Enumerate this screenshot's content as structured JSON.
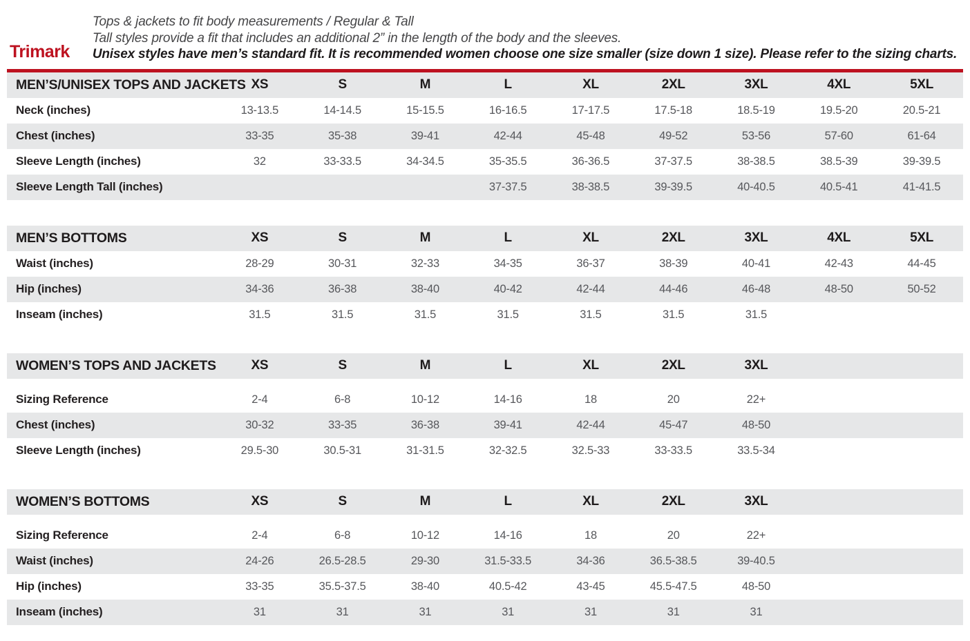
{
  "brand": "Trimark",
  "intro": {
    "line1": "Tops & jackets to fit body measurements / Regular & Tall",
    "line2": "Tall styles provide a fit that includes an additional 2” in the length of the body and the sleeves.",
    "line3": "Unisex styles have men’s standard fit. It is recommended women choose one size smaller (size down 1 size).  Please refer to the sizing charts."
  },
  "colors": {
    "accent_red": "#bd1220",
    "band_gray": "#e6e7e8",
    "value_text": "#56575b",
    "label_text": "#231f20"
  },
  "tables": [
    {
      "title": "MEN’S/UNISEX TOPS AND JACKETS",
      "columns": [
        "XS",
        "S",
        "M",
        "L",
        "XL",
        "2XL",
        "3XL",
        "4XL",
        "5XL"
      ],
      "rows": [
        {
          "label": "Neck (inches)",
          "values": [
            "13-13.5",
            "14-14.5",
            "15-15.5",
            "16-16.5",
            "17-17.5",
            "17.5-18",
            "18.5-19",
            "19.5-20",
            "20.5-21"
          ]
        },
        {
          "label": "Chest (inches)",
          "values": [
            "33-35",
            "35-38",
            "39-41",
            "42-44",
            "45-48",
            "49-52",
            "53-56",
            "57-60",
            "61-64"
          ]
        },
        {
          "label": "Sleeve Length (inches)",
          "values": [
            "32",
            "33-33.5",
            "34-34.5",
            "35-35.5",
            "36-36.5",
            "37-37.5",
            "38-38.5",
            "38.5-39",
            "39-39.5"
          ]
        },
        {
          "label": "Sleeve Length Tall (inches)",
          "values": [
            "",
            "",
            "",
            "37-37.5",
            "38-38.5",
            "39-39.5",
            "40-40.5",
            "40.5-41",
            "41-41.5"
          ]
        }
      ]
    },
    {
      "title": "MEN’S BOTTOMS",
      "columns": [
        "XS",
        "S",
        "M",
        "L",
        "XL",
        "2XL",
        "3XL",
        "4XL",
        "5XL"
      ],
      "rows": [
        {
          "label": "Waist (inches)",
          "values": [
            "28-29",
            "30-31",
            "32-33",
            "34-35",
            "36-37",
            "38-39",
            "40-41",
            "42-43",
            "44-45"
          ]
        },
        {
          "label": "Hip (inches)",
          "values": [
            "34-36",
            "36-38",
            "38-40",
            "40-42",
            "42-44",
            "44-46",
            "46-48",
            "48-50",
            "50-52"
          ]
        },
        {
          "label": "Inseam (inches)",
          "values": [
            "31.5",
            "31.5",
            "31.5",
            "31.5",
            "31.5",
            "31.5",
            "31.5",
            "",
            ""
          ]
        }
      ]
    },
    {
      "title": "WOMEN’S TOPS AND JACKETS",
      "columns": [
        "XS",
        "S",
        "M",
        "L",
        "XL",
        "2XL",
        "3XL"
      ],
      "rows": [
        {
          "label": "Sizing Reference",
          "values": [
            "2-4",
            "6-8",
            "10-12",
            "14-16",
            "18",
            "20",
            "22+"
          ]
        },
        {
          "label": "Chest (inches)",
          "values": [
            "30-32",
            "33-35",
            "36-38",
            "39-41",
            "42-44",
            "45-47",
            "48-50"
          ]
        },
        {
          "label": "Sleeve Length (inches)",
          "values": [
            "29.5-30",
            "30.5-31",
            "31-31.5",
            "32-32.5",
            "32.5-33",
            "33-33.5",
            "33.5-34"
          ]
        }
      ]
    },
    {
      "title": "WOMEN’S BOTTOMS",
      "columns": [
        "XS",
        "S",
        "M",
        "L",
        "XL",
        "2XL",
        "3XL"
      ],
      "rows": [
        {
          "label": "Sizing Reference",
          "values": [
            "2-4",
            "6-8",
            "10-12",
            "14-16",
            "18",
            "20",
            "22+"
          ]
        },
        {
          "label": "Waist (inches)",
          "values": [
            "24-26",
            "26.5-28.5",
            "29-30",
            "31.5-33.5",
            "34-36",
            "36.5-38.5",
            "39-40.5"
          ]
        },
        {
          "label": "Hip (inches)",
          "values": [
            "33-35",
            "35.5-37.5",
            "38-40",
            "40.5-42",
            "43-45",
            "45.5-47.5",
            "48-50"
          ]
        },
        {
          "label": "Inseam (inches)",
          "values": [
            "31",
            "31",
            "31",
            "31",
            "31",
            "31",
            "31"
          ]
        }
      ]
    }
  ]
}
